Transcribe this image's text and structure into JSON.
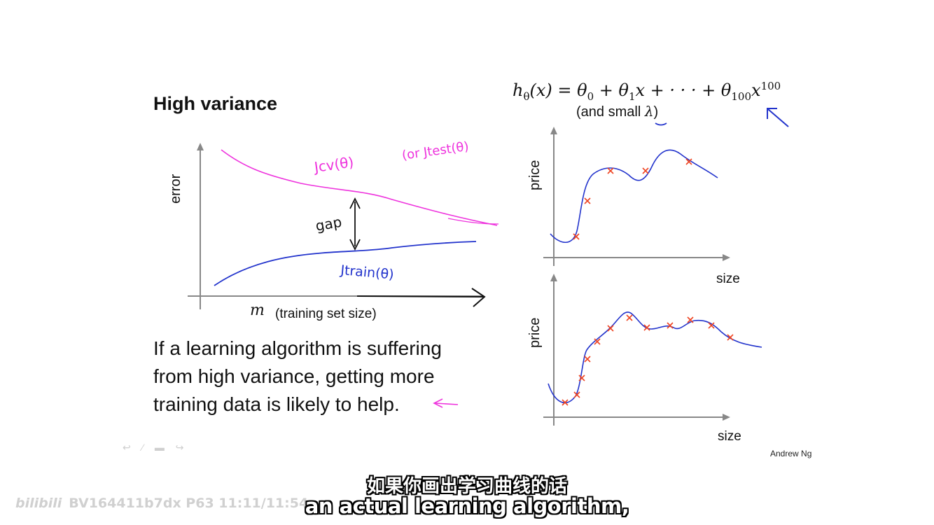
{
  "slide": {
    "title": "High variance",
    "formula_h": "h",
    "formula_theta_sub": "θ",
    "formula_x": "(x) = θ",
    "formula_zero": "0",
    "formula_plus1": " + θ",
    "formula_one": "1",
    "formula_mid": "x + · · · + θ",
    "formula_hundred_sub": "100",
    "formula_x2": "x",
    "formula_hundred_sup": "100",
    "small_lambda_prefix": "(and small ",
    "small_lambda_symbol": "λ",
    "small_lambda_suffix": ")",
    "body_lines": [
      "If a learning algorithm is suffering",
      "from high variance, getting more",
      "training data is likely to help."
    ],
    "author": "Andrew Ng"
  },
  "learning_curve": {
    "ylabel": "error",
    "xlabel_m": "m",
    "xlabel_rest": "(training set size)",
    "cv_label": "Jcv(θ)",
    "test_label": "(or Jtest(θ)",
    "train_label": "Jtrain(θ)",
    "gap_label": "gap",
    "colors": {
      "cv": "#ee33dd",
      "train": "#2233cc",
      "axis": "#888888"
    }
  },
  "fit_plots": {
    "top": {
      "ylabel": "price",
      "xlabel": "size"
    },
    "bottom": {
      "ylabel": "price",
      "xlabel": "size"
    },
    "colors": {
      "curve": "#2233cc",
      "marker": "#ee4422"
    }
  },
  "overlay": {
    "subtitle_zh": "如果你画出学习曲线的话",
    "subtitle_en": "an actual learning algorithm,",
    "watermark_logo": "bilibili",
    "watermark_text": "BV164411b7dx P63 11:11/11:54"
  }
}
